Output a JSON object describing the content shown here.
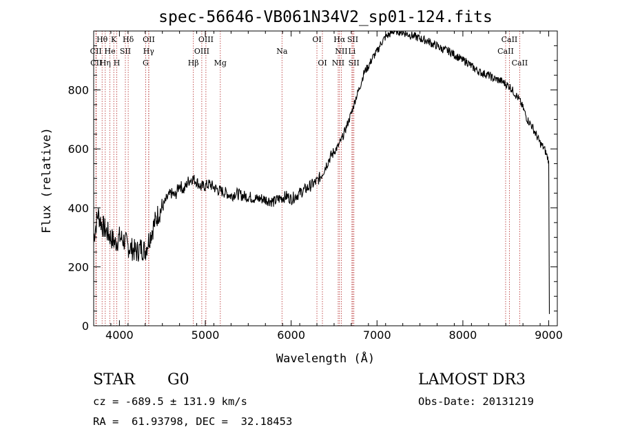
{
  "chart_data": {
    "type": "line",
    "title": "spec-56646-VB061N34V2_sp01-124.fits",
    "xlabel": "Wavelength (Å)",
    "ylabel": "Flux (relative)",
    "xlim": [
      3700,
      9100
    ],
    "ylim": [
      0,
      1000
    ],
    "x_ticks": [
      4000,
      5000,
      6000,
      7000,
      8000,
      9000
    ],
    "x_tick_labels": [
      "4000",
      "5000",
      "6000",
      "7000",
      "8000",
      "9000"
    ],
    "y_ticks": [
      0,
      200,
      400,
      600,
      800
    ],
    "y_tick_labels": [
      "0",
      "200",
      "400",
      "600",
      "800"
    ],
    "grid": false,
    "line_color": "#000000",
    "marker_color": "#b22222",
    "series": [
      {
        "name": "flux",
        "x": [
          3700,
          3750,
          3800,
          3850,
          3900,
          3950,
          4000,
          4050,
          4100,
          4150,
          4200,
          4250,
          4300,
          4350,
          4400,
          4450,
          4500,
          4550,
          4600,
          4650,
          4700,
          4750,
          4800,
          4850,
          4900,
          4950,
          5000,
          5050,
          5100,
          5150,
          5200,
          5250,
          5300,
          5350,
          5400,
          5450,
          5500,
          5550,
          5600,
          5650,
          5700,
          5750,
          5800,
          5850,
          5900,
          5950,
          6000,
          6050,
          6100,
          6150,
          6200,
          6250,
          6300,
          6350,
          6400,
          6450,
          6500,
          6550,
          6600,
          6650,
          6700,
          6750,
          6800,
          6850,
          6900,
          6950,
          7000,
          7050,
          7100,
          7150,
          7200,
          7250,
          7300,
          7350,
          7400,
          7450,
          7500,
          7550,
          7600,
          7650,
          7700,
          7750,
          7800,
          7850,
          7900,
          7950,
          8000,
          8050,
          8100,
          8150,
          8200,
          8250,
          8300,
          8350,
          8400,
          8450,
          8500,
          8550,
          8600,
          8650,
          8700,
          8750,
          8800,
          8850,
          8900,
          8950,
          9000
        ],
        "y": [
          300,
          380,
          340,
          320,
          300,
          280,
          300,
          290,
          270,
          260,
          250,
          265,
          255,
          300,
          340,
          380,
          400,
          430,
          450,
          440,
          480,
          460,
          490,
          500,
          490,
          470,
          475,
          480,
          470,
          460,
          455,
          450,
          440,
          450,
          445,
          440,
          438,
          435,
          430,
          432,
          428,
          425,
          420,
          430,
          435,
          440,
          430,
          440,
          450,
          460,
          470,
          480,
          490,
          510,
          540,
          570,
          590,
          610,
          640,
          680,
          720,
          770,
          810,
          860,
          880,
          910,
          930,
          960,
          980,
          990,
          1000,
          1000,
          995,
          990,
          985,
          980,
          975,
          970,
          965,
          955,
          950,
          940,
          935,
          930,
          920,
          910,
          900,
          895,
          880,
          870,
          860,
          855,
          850,
          840,
          835,
          830,
          820,
          810,
          790,
          770,
          740,
          700,
          680,
          650,
          620,
          600,
          560
        ]
      }
    ],
    "line_markers": [
      {
        "label": "Hθ",
        "x": 3798,
        "row": 1
      },
      {
        "label": "K",
        "x": 3934,
        "row": 1
      },
      {
        "label": "Hδ",
        "x": 4102,
        "row": 1
      },
      {
        "label": "OII",
        "x": 4342,
        "row": 1
      },
      {
        "label": "OIII",
        "x": 5007,
        "row": 1
      },
      {
        "label": "OI",
        "x": 6300,
        "row": 1
      },
      {
        "label": "Hα",
        "x": 6563,
        "row": 1
      },
      {
        "label": "SII",
        "x": 6717,
        "row": 1
      },
      {
        "label": "CaII",
        "x": 8542,
        "row": 1
      },
      {
        "label": "CII",
        "x": 3726,
        "row": 2
      },
      {
        "label": "He",
        "x": 3889,
        "row": 2
      },
      {
        "label": "SII",
        "x": 4069,
        "row": 2
      },
      {
        "label": "Hγ",
        "x": 4340,
        "row": 2
      },
      {
        "label": "OIII",
        "x": 4959,
        "row": 2
      },
      {
        "label": "Na",
        "x": 5893,
        "row": 2
      },
      {
        "label": "NII",
        "x": 6584,
        "row": 2
      },
      {
        "label": "Li",
        "x": 6708,
        "row": 2
      },
      {
        "label": "CaII",
        "x": 8498,
        "row": 2
      },
      {
        "label": "CII",
        "x": 3730,
        "row": 3
      },
      {
        "label": "Hη",
        "x": 3835,
        "row": 3
      },
      {
        "label": "H",
        "x": 3969,
        "row": 3
      },
      {
        "label": "G",
        "x": 4305,
        "row": 3
      },
      {
        "label": "Hβ",
        "x": 4861,
        "row": 3
      },
      {
        "label": "Mg",
        "x": 5175,
        "row": 3
      },
      {
        "label": "OI",
        "x": 6364,
        "row": 3
      },
      {
        "label": "NII",
        "x": 6548,
        "row": 3
      },
      {
        "label": "SII",
        "x": 6731,
        "row": 3
      },
      {
        "label": "CaII",
        "x": 8662,
        "row": 3
      }
    ]
  },
  "info": {
    "class": "STAR",
    "subclass": "G0",
    "survey": "LAMOST DR3",
    "redshift": "cz = -689.5 ± 131.9 km/s",
    "obs_date": "Obs-Date: 20131219",
    "coords": "RA =  61.93798, DEC =  32.18453"
  }
}
